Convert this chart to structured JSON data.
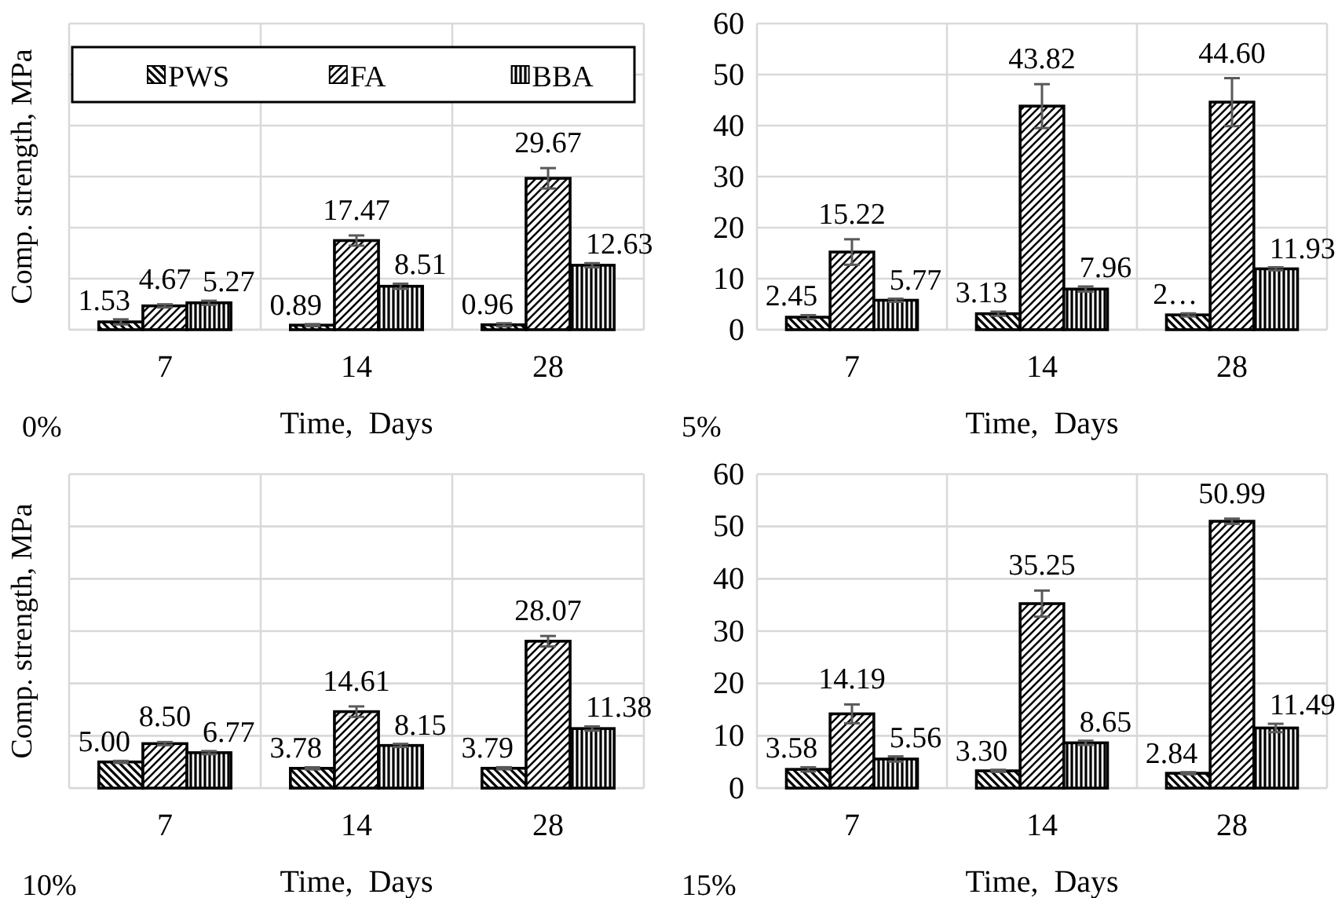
{
  "chart_data": [
    {
      "type": "bar",
      "categories": [
        "7",
        "14",
        "28"
      ],
      "xlabel": "Time,  Days",
      "ylabel": "Comp. strength, MPa",
      "ylim": [
        0,
        60
      ],
      "yticks": [
        0,
        10,
        20,
        30,
        40,
        50,
        60
      ],
      "tick_labels": "x",
      "grid": true,
      "legend": "top",
      "annotations": [
        "0%"
      ],
      "series": [
        {
          "name": "PWS",
          "color": "#000000",
          "values": [
            1.53,
            0.89,
            0.96
          ],
          "errors": [
            0.5,
            0.2,
            0.3
          ],
          "value_labels": [
            "1.53",
            "0.89",
            "0.96"
          ]
        },
        {
          "name": "FA",
          "color": "#000000",
          "values": [
            4.67,
            17.47,
            29.67
          ],
          "errors": [
            0.3,
            1.0,
            2.0
          ],
          "value_labels": [
            "4.67",
            "17.47",
            "29.67"
          ]
        },
        {
          "name": "BBA",
          "color": "#000000",
          "values": [
            5.27,
            8.51,
            12.63
          ],
          "errors": [
            0.4,
            0.5,
            0.4
          ],
          "value_labels": [
            "5.27",
            "8.51",
            "12.63"
          ]
        }
      ]
    },
    {
      "type": "bar",
      "categories": [
        "7",
        "14",
        "28"
      ],
      "xlabel": "Time,  Days",
      "ylim": [
        0,
        60
      ],
      "yticks": [
        0,
        10,
        20,
        30,
        40,
        50,
        60
      ],
      "grid": true,
      "annotations": [
        "5%"
      ],
      "series": [
        {
          "color": "#000000",
          "values": [
            2.45,
            3.13,
            2.9
          ],
          "errors": [
            0.4,
            0.4,
            0.3
          ],
          "value_labels": [
            "2.45",
            "3.13",
            "2…"
          ]
        },
        {
          "color": "#000000",
          "values": [
            15.22,
            43.82,
            44.6
          ],
          "errors": [
            2.5,
            4.3,
            4.7
          ],
          "value_labels": [
            "15.22",
            "43.82",
            "44.60"
          ]
        },
        {
          "color": "#000000",
          "values": [
            5.77,
            7.96,
            11.93
          ],
          "errors": [
            0.3,
            0.5,
            0.3
          ],
          "value_labels": [
            "5.77",
            "7.96",
            "11.93"
          ]
        }
      ]
    },
    {
      "type": "bar",
      "categories": [
        "7",
        "14",
        "28"
      ],
      "xlabel": "Time,  Days",
      "ylabel": "Comp. strength, MPa",
      "ylim": [
        0,
        60
      ],
      "yticks": [
        0,
        10,
        20,
        30,
        40,
        50,
        60
      ],
      "tick_labels": "x",
      "grid": true,
      "annotations": [
        "10%"
      ],
      "series": [
        {
          "color": "#000000",
          "values": [
            5.0,
            3.78,
            3.79
          ],
          "errors": [
            0.2,
            0.2,
            0.2
          ],
          "value_labels": [
            "5.00",
            "3.78",
            "3.79"
          ]
        },
        {
          "color": "#000000",
          "values": [
            8.5,
            14.61,
            28.07
          ],
          "errors": [
            0.3,
            1.0,
            1.0
          ],
          "value_labels": [
            "8.50",
            "14.61",
            "28.07"
          ]
        },
        {
          "color": "#000000",
          "values": [
            6.77,
            8.15,
            11.38
          ],
          "errors": [
            0.3,
            0.3,
            0.4
          ],
          "value_labels": [
            "6.77",
            "8.15",
            "11.38"
          ]
        }
      ]
    },
    {
      "type": "bar",
      "categories": [
        "7",
        "14",
        "28"
      ],
      "xlabel": "Time,  Days",
      "ylim": [
        0,
        60
      ],
      "yticks": [
        0,
        10,
        20,
        30,
        40,
        50,
        60
      ],
      "grid": true,
      "annotations": [
        "15%"
      ],
      "series": [
        {
          "color": "#000000",
          "values": [
            3.58,
            3.3,
            2.84
          ],
          "errors": [
            0.4,
            0.2,
            0.2
          ],
          "value_labels": [
            "3.58",
            "3.30",
            "2.84"
          ]
        },
        {
          "color": "#000000",
          "values": [
            14.19,
            35.25,
            50.99
          ],
          "errors": [
            1.8,
            2.5,
            0.5
          ],
          "value_labels": [
            "14.19",
            "35.25",
            "50.99"
          ]
        },
        {
          "color": "#000000",
          "values": [
            5.56,
            8.65,
            11.49
          ],
          "errors": [
            0.5,
            0.4,
            0.8
          ],
          "value_labels": [
            "5.56",
            "8.65",
            "11.49"
          ]
        }
      ]
    }
  ]
}
